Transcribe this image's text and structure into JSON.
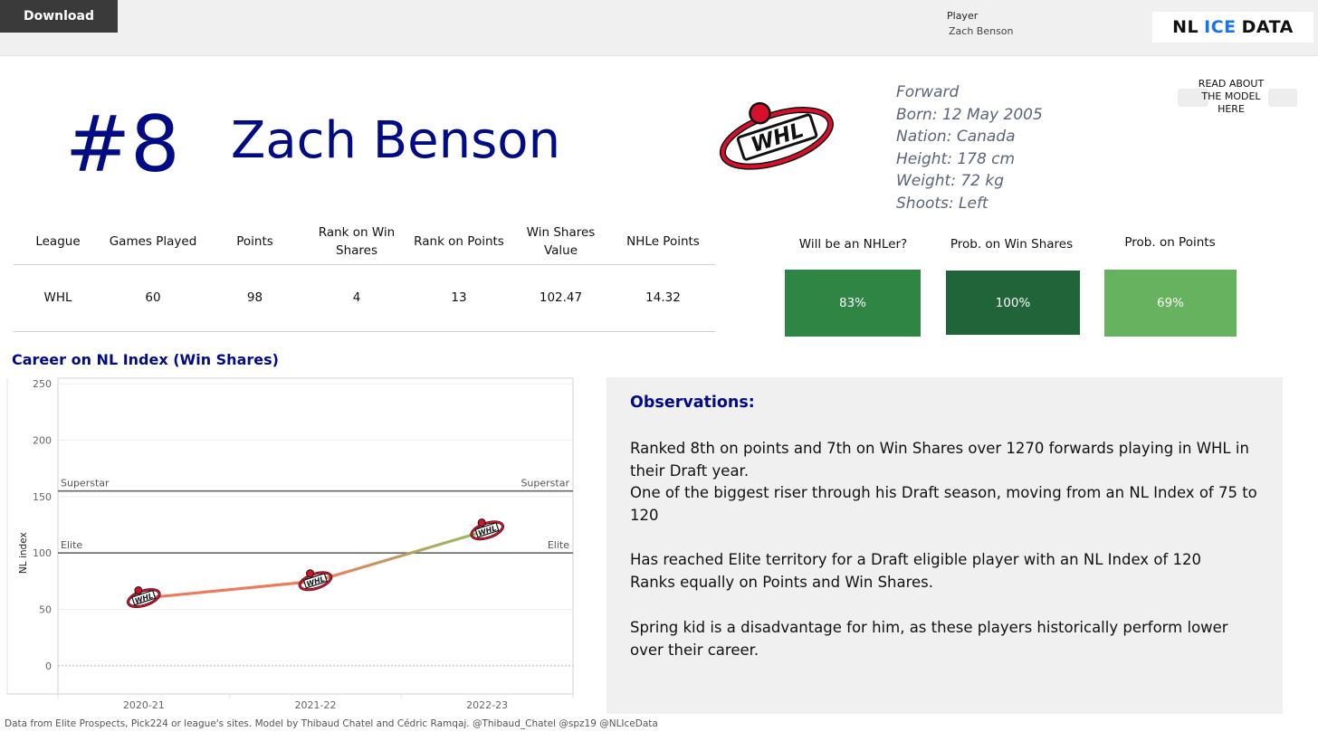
{
  "toolbar": {
    "download_label": "Download"
  },
  "filter": {
    "label": "Player",
    "value": "Zach Benson"
  },
  "brand": {
    "part1": "NL",
    "part2": "ICE",
    "part3": "DATA"
  },
  "header": {
    "rank": "#8",
    "name": "Zach Benson",
    "league_logo_icon": "whl-logo-icon"
  },
  "bio": {
    "position": "Forward",
    "born": "Born: 12 May 2005",
    "nation": "Nation: Canada",
    "height": "Height: 178 cm",
    "weight": "Weight: 72 kg",
    "shoots": "Shoots: Left"
  },
  "read_model": {
    "label": "READ ABOUT THE MODEL HERE"
  },
  "stats_table": {
    "headers": [
      "League",
      "Games Played",
      "Points",
      "Rank on Win Shares",
      "Rank on Points",
      "Win Shares Value",
      "NHLe Points"
    ],
    "row": [
      "WHL",
      "60",
      "98",
      "4",
      "13",
      "102.47",
      "14.32"
    ]
  },
  "probabilities": [
    {
      "title": "Will be an NHLer?",
      "value": "83%",
      "fraction": 0.83,
      "color": "#2e8544"
    },
    {
      "title": "Prob. on Win Shares",
      "value": "100%",
      "fraction": 1.0,
      "color": "#21643a"
    },
    {
      "title": "Prob. on Points",
      "value": "69%",
      "fraction": 0.69,
      "color": "#66b25e"
    }
  ],
  "career": {
    "title": "Career on NL Index (Win Shares)"
  },
  "chart_data": {
    "type": "line",
    "ylabel": "NL index",
    "ylim": [
      -25,
      255
    ],
    "yticks": [
      0,
      50,
      100,
      150,
      200,
      250
    ],
    "categories": [
      "2020-21",
      "2021-22",
      "2022-23"
    ],
    "values": [
      60,
      75,
      120
    ],
    "reference_lines": [
      {
        "label": "Superstar",
        "value": 155
      },
      {
        "label": "Elite",
        "value": 100
      }
    ],
    "point_icon": "whl-logo-icon",
    "colors": {
      "low": "#ee7a5e",
      "high": "#8fc160"
    },
    "grid": true
  },
  "observations": {
    "title": "Observations:",
    "p1": "Ranked 8th on points and 7th on Win Shares over 1270 forwards playing in WHL in their Draft year.",
    "p2": "One of the biggest riser through his Draft season, moving from an NL Index of 75 to 120",
    "p3": "Has reached Elite territory for a Draft eligible player with an NL Index of 120",
    "p4": "Ranks equally on Points and Win Shares.",
    "p5": " Spring kid is a disadvantage for him, as these players historically perform lower over their career."
  },
  "footer": {
    "text": "Data from Elite Prospects, Pick224 or league's sites. Model by Thibaud Chatel and Cédric Ramqaj. @Thibaud_Chatel @spz19 @NLIceData"
  }
}
